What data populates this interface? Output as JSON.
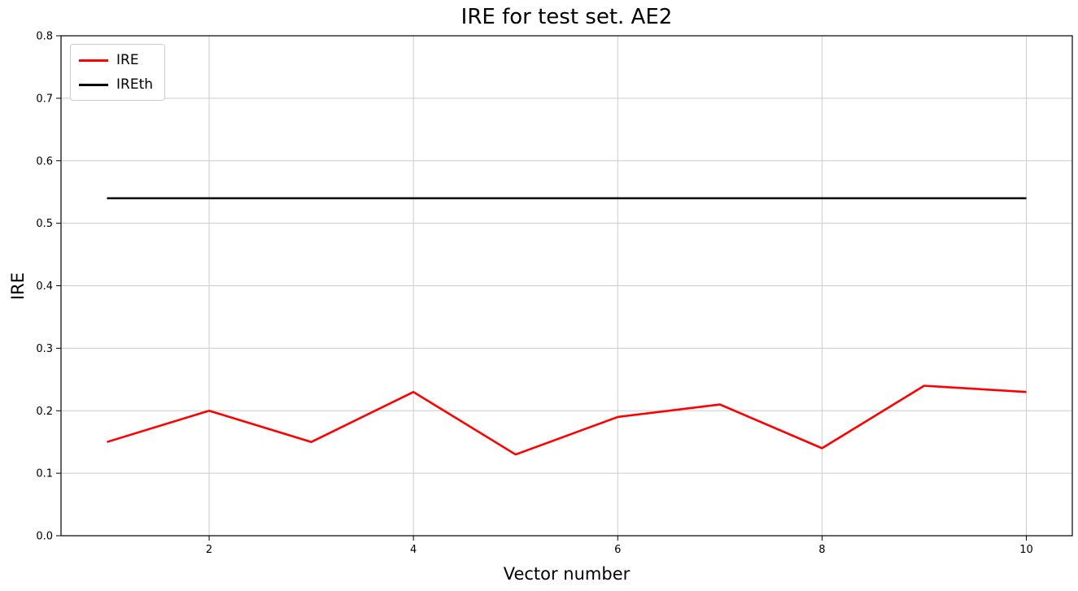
{
  "chart_data": {
    "type": "line",
    "title": "IRE for test set. AE2",
    "xlabel": "Vector number",
    "ylabel": "IRE",
    "x": [
      1,
      2,
      3,
      4,
      5,
      6,
      7,
      8,
      9,
      10
    ],
    "series": [
      {
        "name": "IRE",
        "color": "#ff0000",
        "values": [
          0.15,
          0.2,
          0.15,
          0.23,
          0.13,
          0.19,
          0.21,
          0.14,
          0.24,
          0.23
        ]
      },
      {
        "name": "IREth",
        "color": "#000000",
        "values": [
          0.54,
          0.54,
          0.54,
          0.54,
          0.54,
          0.54,
          0.54,
          0.54,
          0.54,
          0.54
        ]
      }
    ],
    "xlim": [
      0.55,
      10.45
    ],
    "ylim": [
      0.0,
      0.8
    ],
    "xticks": [
      2,
      4,
      6,
      8,
      10
    ],
    "yticks": [
      0.0,
      0.1,
      0.2,
      0.3,
      0.4,
      0.5,
      0.6,
      0.7,
      0.8
    ],
    "grid": true,
    "grid_color": "#cccccc",
    "frame_color": "#000000",
    "background": "#ffffff",
    "legend_position": "top-left"
  }
}
